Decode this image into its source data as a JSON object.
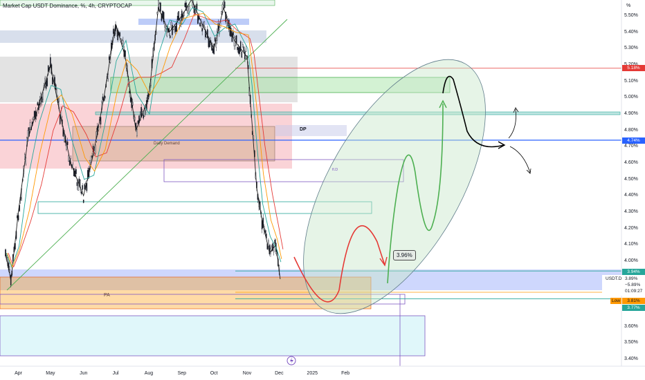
{
  "title": "Market Cap USDT Dominance, %, 4h, CRYPTOCAP",
  "axis_unit": "%",
  "colors": {
    "up": "#26a69a",
    "down": "#ef5350",
    "blue_line": "#2962ff",
    "orange": "#ff9800",
    "green_path": "#4caf50",
    "red_path": "#e53935"
  },
  "chart_data": {
    "type": "candlestick",
    "title": "Market Cap USDT Dominance, %, 4h, CRYPTOCAP",
    "y_ticks": [
      "5.50%",
      "5.40%",
      "5.30%",
      "5.20%",
      "5.10%",
      "5.00%",
      "4.90%",
      "4.80%",
      "4.70%",
      "4.60%",
      "4.50%",
      "4.40%",
      "4.30%",
      "4.20%",
      "4.10%",
      "4.00%",
      "3.90%",
      "3.80%",
      "3.70%",
      "3.60%",
      "3.50%",
      "3.40%"
    ],
    "y_range": [
      3.37,
      5.57
    ],
    "x_ticks": [
      "Apr",
      "May",
      "Jun",
      "Jul",
      "Aug",
      "Sep",
      "Oct",
      "Nov",
      "Dec",
      "2025",
      "Feb"
    ],
    "price_path": [
      {
        "date": "2024-03-20",
        "value": 4.05
      },
      {
        "date": "2024-03-25",
        "value": 3.88
      },
      {
        "date": "2024-04-01",
        "value": 4.3
      },
      {
        "date": "2024-04-10",
        "value": 4.75
      },
      {
        "date": "2024-04-20",
        "value": 4.95
      },
      {
        "date": "2024-05-01",
        "value": 5.2
      },
      {
        "date": "2024-05-10",
        "value": 4.9
      },
      {
        "date": "2024-05-20",
        "value": 4.6
      },
      {
        "date": "2024-06-01",
        "value": 4.4
      },
      {
        "date": "2024-06-10",
        "value": 4.65
      },
      {
        "date": "2024-06-20",
        "value": 5.0
      },
      {
        "date": "2024-07-01",
        "value": 5.45
      },
      {
        "date": "2024-07-10",
        "value": 5.25
      },
      {
        "date": "2024-07-20",
        "value": 4.8
      },
      {
        "date": "2024-08-01",
        "value": 5.0
      },
      {
        "date": "2024-08-10",
        "value": 5.55
      },
      {
        "date": "2024-08-20",
        "value": 5.4
      },
      {
        "date": "2024-09-01",
        "value": 5.5
      },
      {
        "date": "2024-09-10",
        "value": 5.6
      },
      {
        "date": "2024-09-20",
        "value": 5.45
      },
      {
        "date": "2024-10-01",
        "value": 5.3
      },
      {
        "date": "2024-10-10",
        "value": 5.55
      },
      {
        "date": "2024-10-20",
        "value": 5.35
      },
      {
        "date": "2024-11-01",
        "value": 5.25
      },
      {
        "date": "2024-11-05",
        "value": 4.9
      },
      {
        "date": "2024-11-10",
        "value": 4.45
      },
      {
        "date": "2024-11-15",
        "value": 4.25
      },
      {
        "date": "2024-11-22",
        "value": 4.05
      },
      {
        "date": "2024-11-28",
        "value": 4.1
      },
      {
        "date": "2024-12-02",
        "value": 3.89
      }
    ],
    "projection_path": [
      {
        "date": "2024-12-02",
        "value": 3.97
      },
      {
        "date": "2024-12-12",
        "value": 3.75
      },
      {
        "date": "2024-12-22",
        "value": 3.8
      },
      {
        "date": "2025-01-01",
        "value": 4.28
      },
      {
        "date": "2025-01-10",
        "value": 4.0
      },
      {
        "date": "2025-01-17",
        "value": 3.95
      }
    ],
    "horizontal_levels": [
      {
        "value": 5.18,
        "color": "#e53935"
      },
      {
        "value": 4.74,
        "color": "#2962ff"
      },
      {
        "value": 3.94,
        "color": "#26a69a"
      },
      {
        "value": 3.81,
        "color": "#ff9800"
      },
      {
        "value": 3.77,
        "color": "#26a69a"
      }
    ]
  },
  "price_tags": {
    "level_518": "5.18%",
    "level_474": "4.74%",
    "level_394": "3.94%",
    "level_381": "3.81%",
    "level_377": "3.77%"
  },
  "usdt_box": {
    "symbol": "USDT.D",
    "value": "3.89%",
    "change": "−5.89%",
    "countdown": "01:09:27"
  },
  "low_label": "Low",
  "annotations": {
    "dp": "DP",
    "demand": "Daily Demand",
    "pa": "PA",
    "fib": "fl.D",
    "bubble": "3.96%"
  }
}
